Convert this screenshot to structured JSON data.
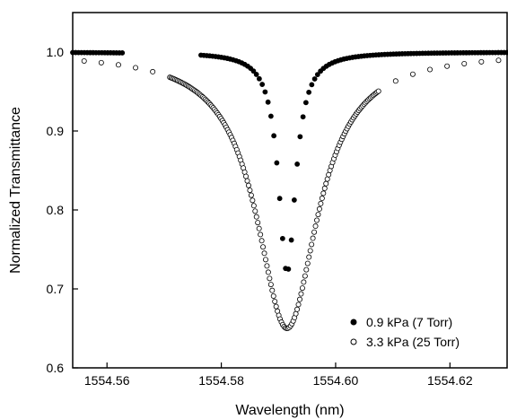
{
  "chart_data": {
    "type": "scatter",
    "title": "",
    "xlabel": "Wavelength (nm)",
    "ylabel": "Normalized Transmittance",
    "xlim": [
      1554.554,
      1554.63
    ],
    "ylim": [
      0.6,
      1.05
    ],
    "xticks": [
      1554.56,
      1554.58,
      1554.6,
      1554.62
    ],
    "xtick_labels": [
      "1554.56",
      "1554.58",
      "1554.60",
      "1554.62"
    ],
    "yticks": [
      0.6,
      0.7,
      0.8,
      0.9,
      1.0
    ],
    "ytick_labels": [
      "0.6",
      "0.7",
      "0.8",
      "0.9",
      "1.0"
    ],
    "grid": false,
    "legend_position": "bottom-right",
    "series": [
      {
        "name": "0.9 kPa (7 Torr)",
        "marker": "filled-circle",
        "color": "#000000",
        "center": 1554.5915,
        "min_transmittance": 0.72,
        "hwhm": 0.0018,
        "x_range": [
          1554.554,
          1554.63
        ],
        "gap": [
          1554.563,
          1554.576
        ],
        "points": 150
      },
      {
        "name": "3.3 kPa (25 Torr)",
        "marker": "open-circle",
        "color": "#000000",
        "center": 1554.5915,
        "min_transmittance": 0.65,
        "hwhm": 0.0065,
        "x_range": [
          1554.556,
          1554.63
        ],
        "dense_range": [
          1554.571,
          1554.6075
        ],
        "points": 160
      }
    ],
    "legend": [
      {
        "label": "0.9 kPa (7 Torr)",
        "marker": "filled-circle"
      },
      {
        "label": "3.3 kPa (25 Torr)",
        "marker": "open-circle"
      }
    ]
  }
}
